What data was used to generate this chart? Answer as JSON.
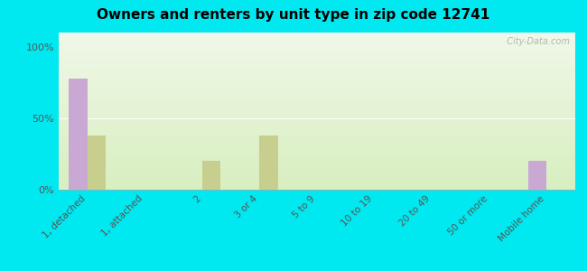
{
  "title": "Owners and renters by unit type in zip code 12741",
  "categories": [
    "1, detached",
    "1, attached",
    "2",
    "3 or 4",
    "5 to 9",
    "10 to 19",
    "20 to 49",
    "50 or more",
    "Mobile home"
  ],
  "owner_values": [
    78,
    0,
    0,
    0,
    0,
    0,
    0,
    0,
    20
  ],
  "renter_values": [
    38,
    0,
    20,
    38,
    0,
    0,
    0,
    0,
    0
  ],
  "owner_color": "#c9a8d4",
  "renter_color": "#c8cf8e",
  "grad_top": "#f0f8e8",
  "grad_bottom": "#d8efc0",
  "outer_bg": "#00e8f0",
  "yticks": [
    0,
    50,
    100
  ],
  "ylabels": [
    "0%",
    "50%",
    "100%"
  ],
  "ylim": [
    0,
    110
  ],
  "bar_width": 0.32,
  "watermark": "  City-Data.com"
}
